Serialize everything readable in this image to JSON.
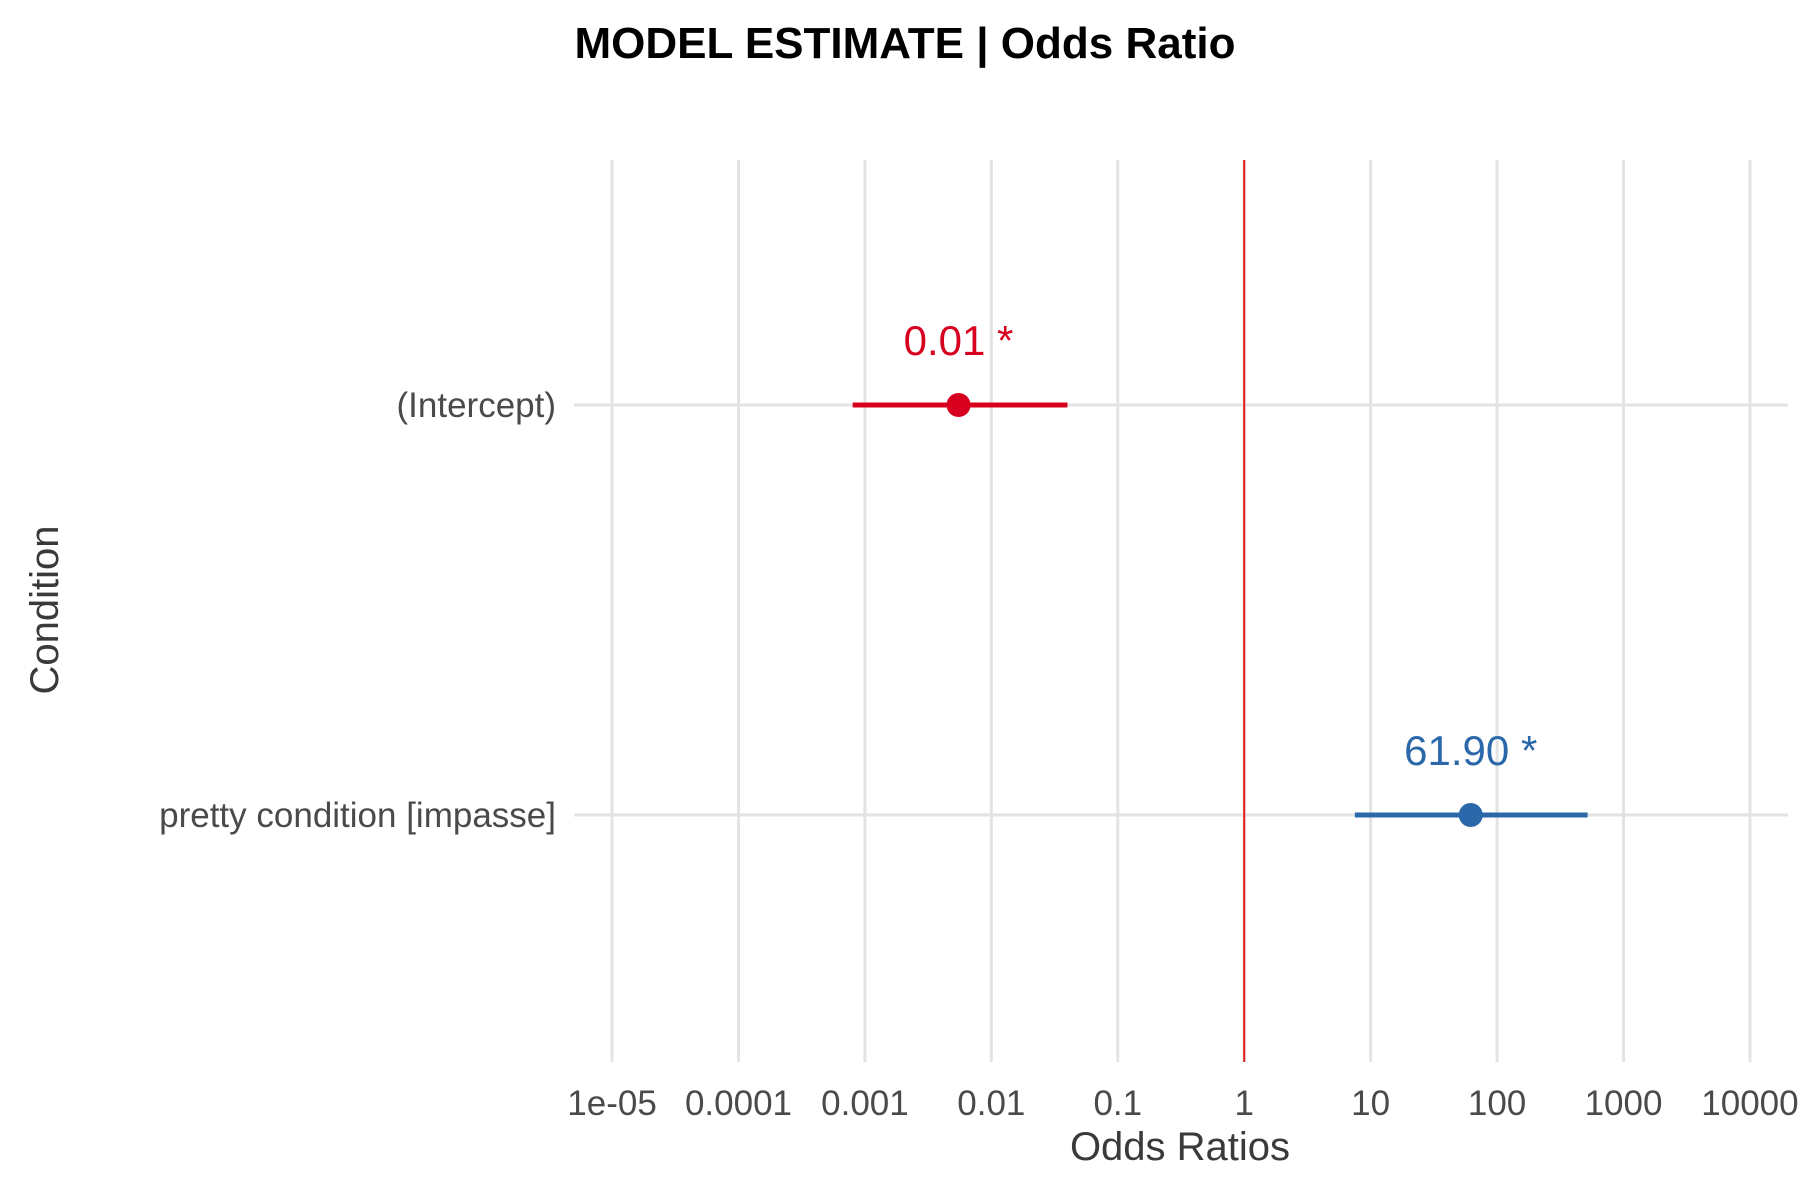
{
  "chart_data": {
    "type": "forest",
    "title": "MODEL ESTIMATE | Odds Ratio",
    "xlabel": "Odds Ratios",
    "ylabel": "Condition",
    "x_scale": "log10",
    "xlim": [
      5e-06,
      20000
    ],
    "x_ticks": [
      {
        "value": 1e-05,
        "label": "1e-05"
      },
      {
        "value": 0.0001,
        "label": "0.0001"
      },
      {
        "value": 0.001,
        "label": "0.001"
      },
      {
        "value": 0.01,
        "label": "0.01"
      },
      {
        "value": 0.1,
        "label": "0.1"
      },
      {
        "value": 1,
        "label": "1"
      },
      {
        "value": 10,
        "label": "10"
      },
      {
        "value": 100,
        "label": "100"
      },
      {
        "value": 1000,
        "label": "1000"
      },
      {
        "value": 10000,
        "label": "10000"
      }
    ],
    "reference_line": {
      "value": 1,
      "color": "#e41a1c"
    },
    "grid": true,
    "terms": [
      {
        "name": "(Intercept)",
        "estimate": 0.0055,
        "ci_low": 0.0008,
        "ci_high": 0.04,
        "label": "0.01 *",
        "color": "#d7001f"
      },
      {
        "name": "pretty condition [impasse]",
        "estimate": 61.9,
        "ci_low": 7.5,
        "ci_high": 520,
        "label": "61.90 *",
        "color": "#2b68aa"
      }
    ]
  }
}
